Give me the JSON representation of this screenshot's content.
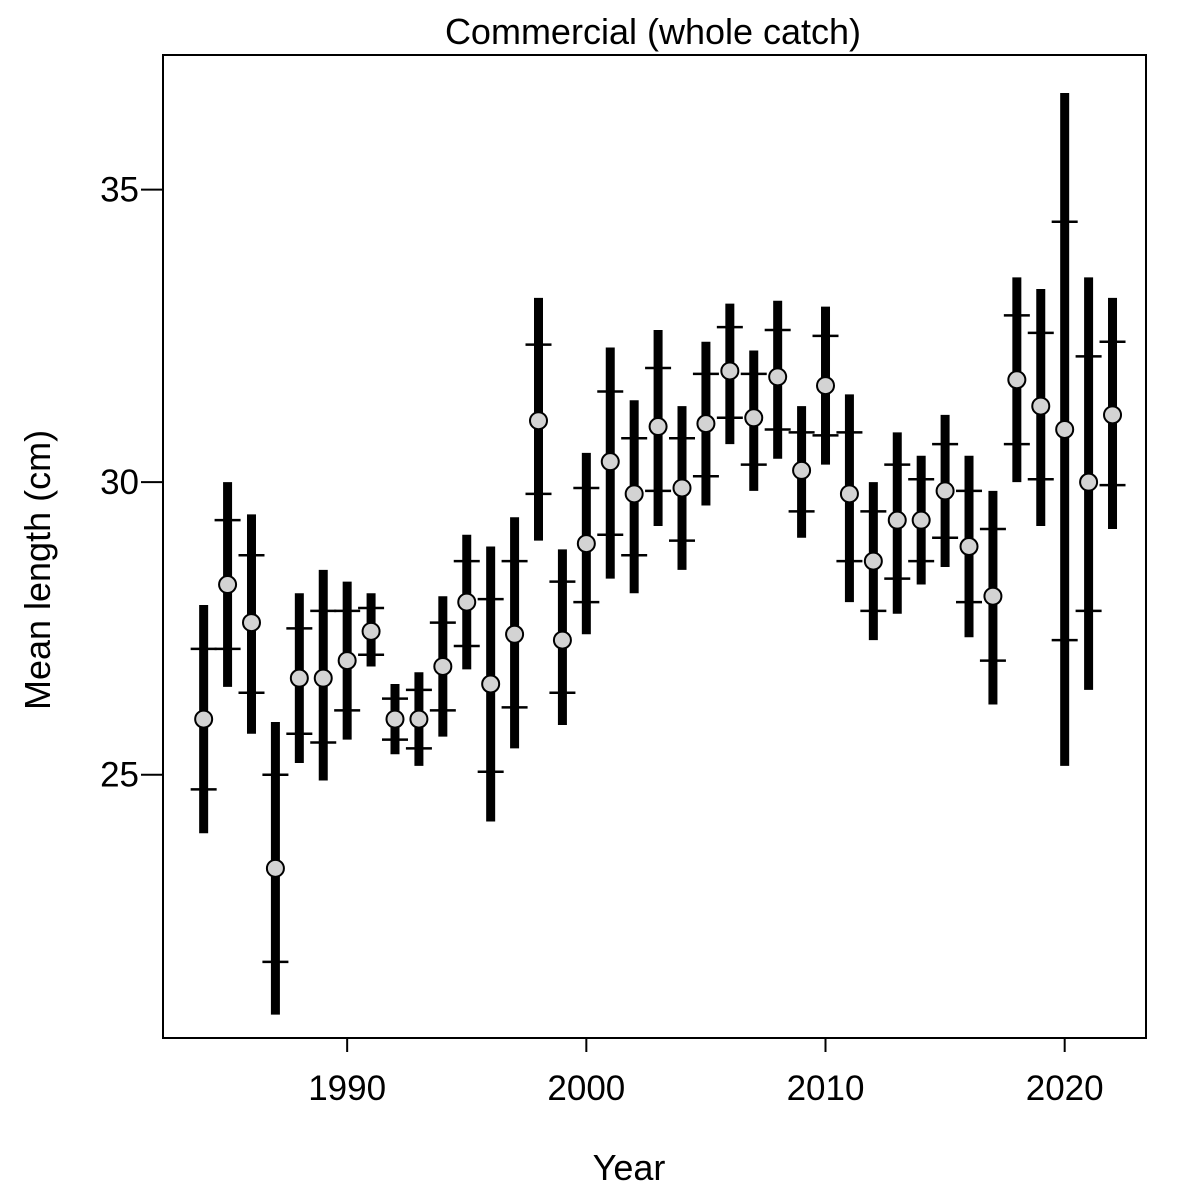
{
  "chart_data": {
    "type": "scatter",
    "title": "Commercial (whole catch)",
    "xlabel": "Year",
    "ylabel": "Mean length (cm)",
    "xlim": [
      1982.3,
      2023.4
    ],
    "ylim": [
      20.5,
      37.3
    ],
    "x_ticks": [
      1990,
      2000,
      2010,
      2020
    ],
    "y_ticks": [
      25,
      30,
      35
    ],
    "grid": false,
    "marker_fill": "#d3d3d3",
    "bar_color": "#000000",
    "series": [
      {
        "points": [
          {
            "year": 1984,
            "mean": 25.95,
            "inner_low": 24.75,
            "inner_high": 27.15,
            "outer_low": 24.0,
            "outer_high": 27.9
          },
          {
            "year": 1985,
            "mean": 28.25,
            "inner_low": 27.15,
            "inner_high": 29.35,
            "outer_low": 26.5,
            "outer_high": 30.0
          },
          {
            "year": 1986,
            "mean": 27.6,
            "inner_low": 26.4,
            "inner_high": 28.75,
            "outer_low": 25.7,
            "outer_high": 29.45
          },
          {
            "year": 1987,
            "mean": 23.4,
            "inner_low": 21.8,
            "inner_high": 25.0,
            "outer_low": 20.9,
            "outer_high": 25.9
          },
          {
            "year": 1988,
            "mean": 26.65,
            "inner_low": 25.7,
            "inner_high": 27.5,
            "outer_low": 25.2,
            "outer_high": 28.1
          },
          {
            "year": 1989,
            "mean": 26.65,
            "inner_low": 25.55,
            "inner_high": 27.8,
            "outer_low": 24.9,
            "outer_high": 28.5
          },
          {
            "year": 1990,
            "mean": 26.95,
            "inner_low": 26.1,
            "inner_high": 27.8,
            "outer_low": 25.6,
            "outer_high": 28.3
          },
          {
            "year": 1991,
            "mean": 27.45,
            "inner_low": 27.05,
            "inner_high": 27.85,
            "outer_low": 26.85,
            "outer_high": 28.1
          },
          {
            "year": 1992,
            "mean": 25.95,
            "inner_low": 25.6,
            "inner_high": 26.3,
            "outer_low": 25.35,
            "outer_high": 26.55
          },
          {
            "year": 1993,
            "mean": 25.95,
            "inner_low": 25.45,
            "inner_high": 26.45,
            "outer_low": 25.15,
            "outer_high": 26.75
          },
          {
            "year": 1994,
            "mean": 26.85,
            "inner_low": 26.1,
            "inner_high": 27.6,
            "outer_low": 25.65,
            "outer_high": 28.05
          },
          {
            "year": 1995,
            "mean": 27.95,
            "inner_low": 27.2,
            "inner_high": 28.65,
            "outer_low": 26.8,
            "outer_high": 29.1
          },
          {
            "year": 1996,
            "mean": 26.55,
            "inner_low": 25.05,
            "inner_high": 28.0,
            "outer_low": 24.2,
            "outer_high": 28.9
          },
          {
            "year": 1997,
            "mean": 27.4,
            "inner_low": 26.15,
            "inner_high": 28.65,
            "outer_low": 25.45,
            "outer_high": 29.4
          },
          {
            "year": 1998,
            "mean": 31.05,
            "inner_low": 29.8,
            "inner_high": 32.35,
            "outer_low": 29.0,
            "outer_high": 33.15
          },
          {
            "year": 1999,
            "mean": 27.3,
            "inner_low": 26.4,
            "inner_high": 28.3,
            "outer_low": 25.85,
            "outer_high": 28.85
          },
          {
            "year": 2000,
            "mean": 28.95,
            "inner_low": 27.95,
            "inner_high": 29.9,
            "outer_low": 27.4,
            "outer_high": 30.5
          },
          {
            "year": 2001,
            "mean": 30.35,
            "inner_low": 29.1,
            "inner_high": 31.55,
            "outer_low": 28.35,
            "outer_high": 32.3
          },
          {
            "year": 2002,
            "mean": 29.8,
            "inner_low": 28.75,
            "inner_high": 30.75,
            "outer_low": 28.1,
            "outer_high": 31.4
          },
          {
            "year": 2003,
            "mean": 30.95,
            "inner_low": 29.85,
            "inner_high": 31.95,
            "outer_low": 29.25,
            "outer_high": 32.6
          },
          {
            "year": 2004,
            "mean": 29.9,
            "inner_low": 29.0,
            "inner_high": 30.75,
            "outer_low": 28.5,
            "outer_high": 31.3
          },
          {
            "year": 2005,
            "mean": 31.0,
            "inner_low": 30.1,
            "inner_high": 31.85,
            "outer_low": 29.6,
            "outer_high": 32.4
          },
          {
            "year": 2006,
            "mean": 31.9,
            "inner_low": 31.1,
            "inner_high": 32.65,
            "outer_low": 30.65,
            "outer_high": 33.05
          },
          {
            "year": 2007,
            "mean": 31.1,
            "inner_low": 30.3,
            "inner_high": 31.85,
            "outer_low": 29.85,
            "outer_high": 32.25
          },
          {
            "year": 2008,
            "mean": 31.8,
            "inner_low": 30.9,
            "inner_high": 32.6,
            "outer_low": 30.4,
            "outer_high": 33.1
          },
          {
            "year": 2009,
            "mean": 30.2,
            "inner_low": 29.5,
            "inner_high": 30.85,
            "outer_low": 29.05,
            "outer_high": 31.3
          },
          {
            "year": 2010,
            "mean": 31.65,
            "inner_low": 30.8,
            "inner_high": 32.5,
            "outer_low": 30.3,
            "outer_high": 33.0
          },
          {
            "year": 2011,
            "mean": 29.8,
            "inner_low": 28.65,
            "inner_high": 30.85,
            "outer_low": 27.95,
            "outer_high": 31.5
          },
          {
            "year": 2012,
            "mean": 28.65,
            "inner_low": 27.8,
            "inner_high": 29.5,
            "outer_low": 27.3,
            "outer_high": 30.0
          },
          {
            "year": 2013,
            "mean": 29.35,
            "inner_low": 28.35,
            "inner_high": 30.3,
            "outer_low": 27.75,
            "outer_high": 30.85
          },
          {
            "year": 2014,
            "mean": 29.35,
            "inner_low": 28.65,
            "inner_high": 30.05,
            "outer_low": 28.25,
            "outer_high": 30.45
          },
          {
            "year": 2015,
            "mean": 29.85,
            "inner_low": 29.05,
            "inner_high": 30.65,
            "outer_low": 28.55,
            "outer_high": 31.15
          },
          {
            "year": 2016,
            "mean": 28.9,
            "inner_low": 27.95,
            "inner_high": 29.85,
            "outer_low": 27.35,
            "outer_high": 30.45
          },
          {
            "year": 2017,
            "mean": 28.05,
            "inner_low": 26.95,
            "inner_high": 29.2,
            "outer_low": 26.2,
            "outer_high": 29.85
          },
          {
            "year": 2018,
            "mean": 31.75,
            "inner_low": 30.65,
            "inner_high": 32.85,
            "outer_low": 30.0,
            "outer_high": 33.5
          },
          {
            "year": 2019,
            "mean": 31.3,
            "inner_low": 30.05,
            "inner_high": 32.55,
            "outer_low": 29.25,
            "outer_high": 33.3
          },
          {
            "year": 2020,
            "mean": 30.9,
            "inner_low": 27.3,
            "inner_high": 34.45,
            "outer_low": 25.15,
            "outer_high": 36.65
          },
          {
            "year": 2021,
            "mean": 30.0,
            "inner_low": 27.8,
            "inner_high": 32.15,
            "outer_low": 26.45,
            "outer_high": 33.5
          },
          {
            "year": 2022,
            "mean": 31.15,
            "inner_low": 29.95,
            "inner_high": 32.4,
            "outer_low": 29.2,
            "outer_high": 33.15
          }
        ]
      }
    ]
  }
}
